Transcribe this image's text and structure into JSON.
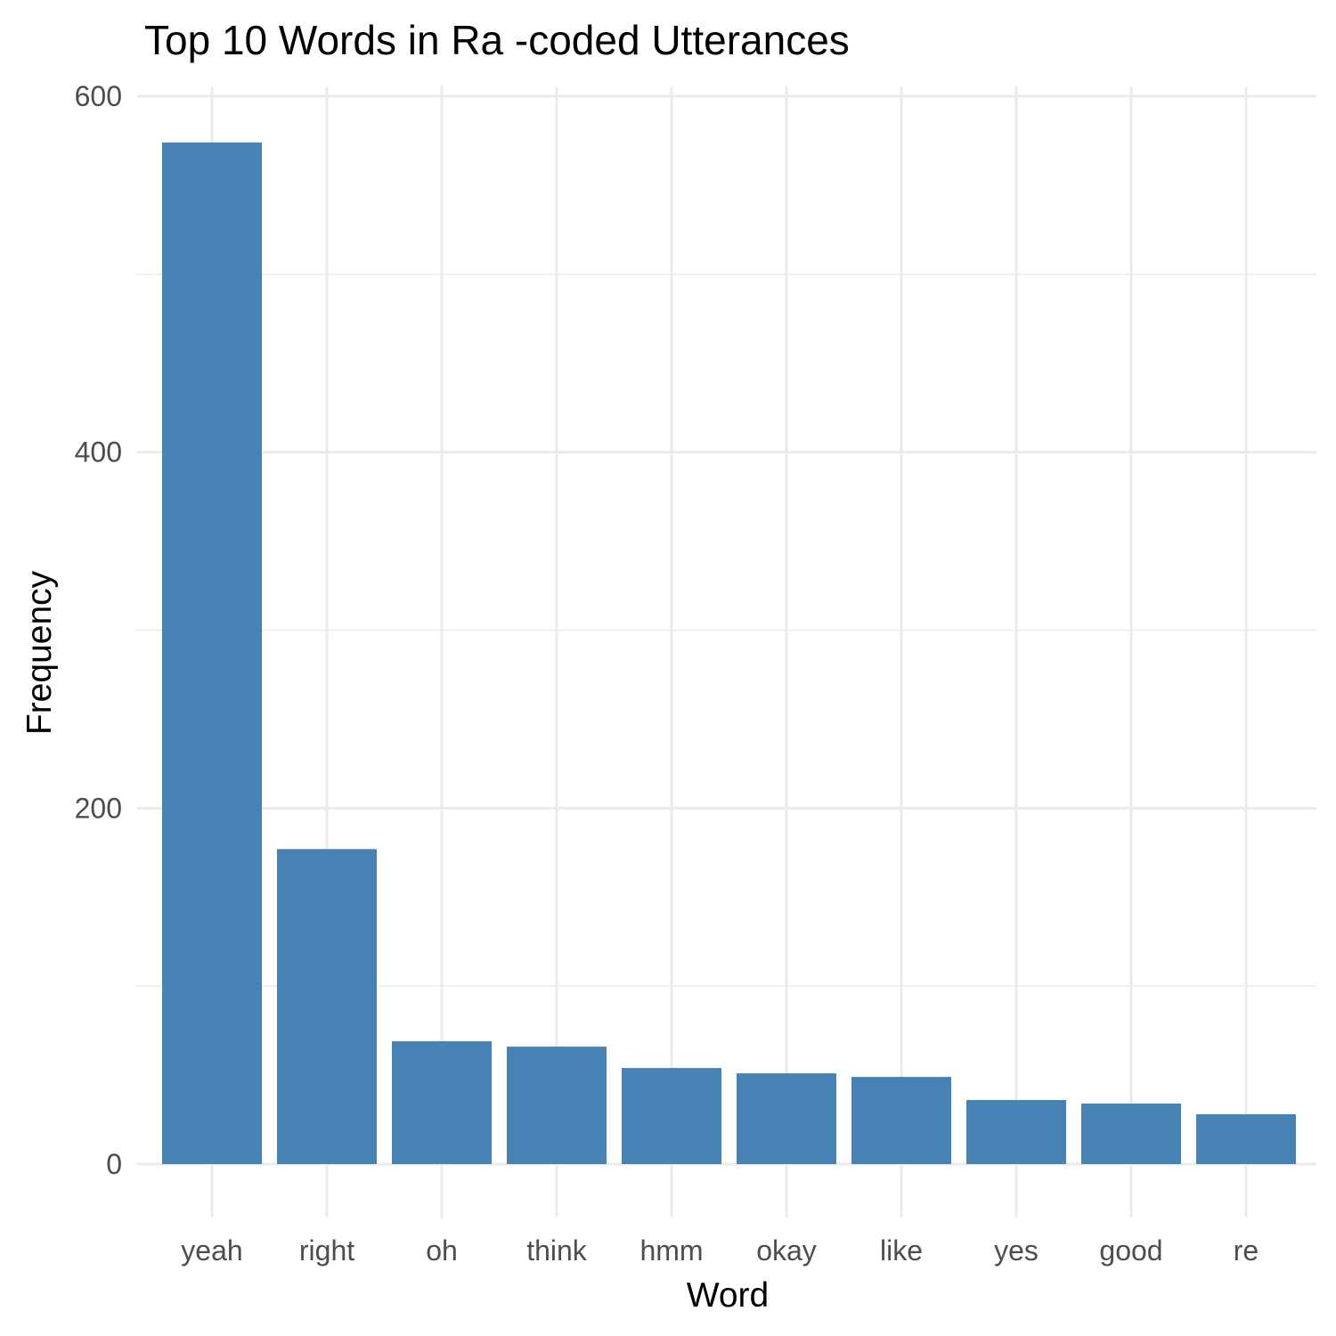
{
  "chart_data": {
    "type": "bar",
    "title": "Top 10 Words in Ra -coded Utterances",
    "xlabel": "Word",
    "ylabel": "Frequency",
    "categories": [
      "yeah",
      "right",
      "oh",
      "think",
      "hmm",
      "okay",
      "like",
      "yes",
      "good",
      "re"
    ],
    "values": [
      574,
      177,
      69,
      66,
      54,
      51,
      49,
      36,
      34,
      28
    ],
    "ylim": [
      0,
      600
    ],
    "yticks": [
      0,
      200,
      400,
      600
    ],
    "ytick_labels": [
      "0",
      "200",
      "400",
      "600"
    ],
    "bar_color": "#4682B4",
    "grid": true,
    "legend": "none"
  }
}
